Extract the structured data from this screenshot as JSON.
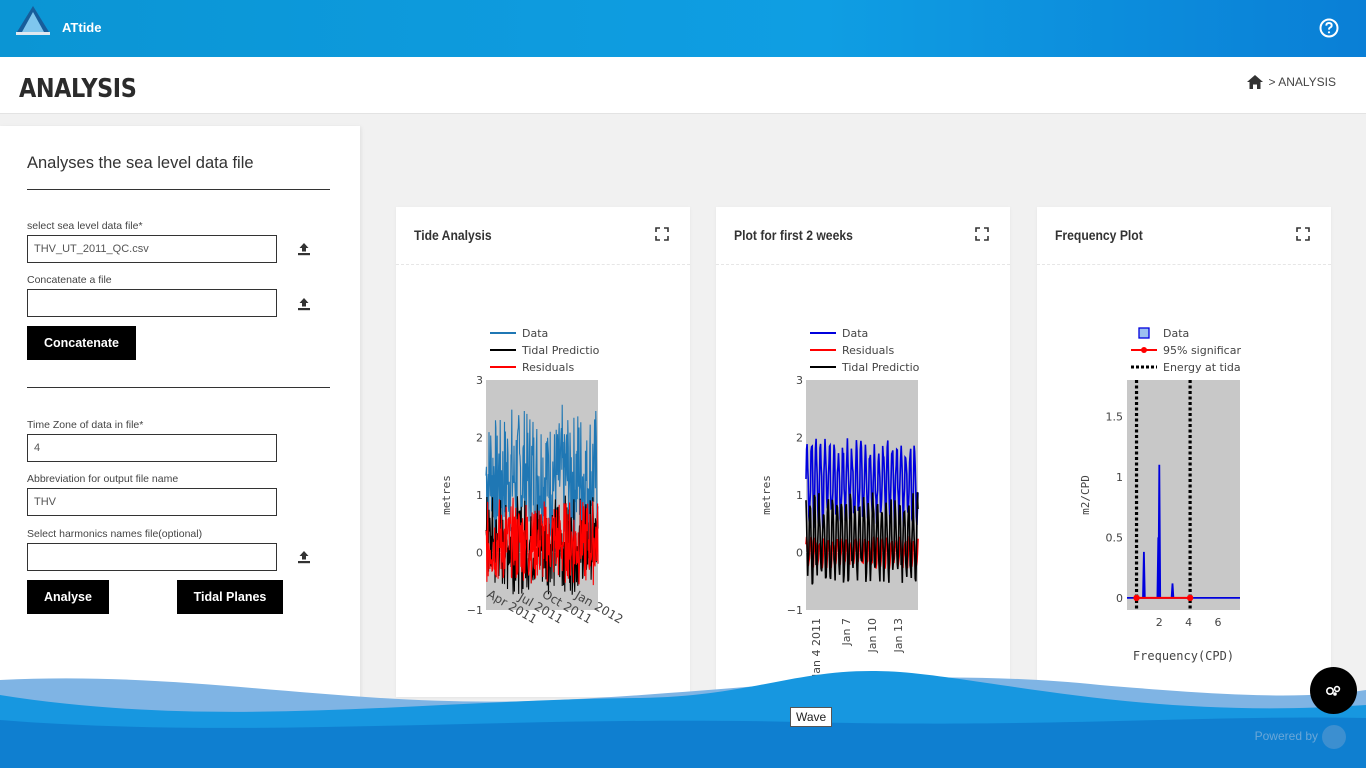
{
  "header": {
    "app_name": "ATtide"
  },
  "page": {
    "title": "ANALYSIS",
    "breadcrumb": "> ANALYSIS"
  },
  "form": {
    "title": "Analyses the sea level data file",
    "sea_level_label": "select sea level data file*",
    "sea_level_value": "THV_UT_2011_QC.csv",
    "concat_label": "Concatenate a file",
    "concat_value": "",
    "concat_button": "Concatenate",
    "timezone_label": "Time Zone of data in file*",
    "timezone_value": "4",
    "abbrev_label": "Abbreviation for output file name",
    "abbrev_value": "THV",
    "harmonics_label": "Select harmonics names file(optional)",
    "harmonics_value": "",
    "analyse_button": "Analyse",
    "tidal_planes_button": "Tidal Planes"
  },
  "cards": [
    {
      "title": "Tide Analysis"
    },
    {
      "title": "Plot for first 2 weeks"
    },
    {
      "title": "Frequency Plot"
    }
  ],
  "footer": {
    "wave_tooltip": "Wave",
    "powered_by": "Powered by"
  },
  "colors": {
    "header": "#0f9ee3",
    "data_series": "#1f77b4",
    "data_blue": "#0000dd",
    "residuals": "#ff0000",
    "prediction": "#000000",
    "plot_bg": "#c8c8c8"
  },
  "chart_data": [
    {
      "type": "line",
      "legend": [
        "Data",
        "Tidal Predictio",
        "Residuals"
      ],
      "legend_colors": [
        "#1f77b4",
        "#000000",
        "#ff0000"
      ],
      "ylabel": "metres",
      "yticks": [
        "3",
        "2",
        "1",
        "0",
        "−1"
      ],
      "ylim": [
        -1,
        3
      ],
      "xticks": [
        "Apr 2011",
        "Jul 2011",
        "Oct 2011",
        "Jan 2012"
      ],
      "series": [
        {
          "name": "Data",
          "range": [
            0.1,
            2.6
          ]
        },
        {
          "name": "Tidal Predictio",
          "range": [
            -0.75,
            1.05
          ]
        },
        {
          "name": "Residuals",
          "range": [
            -0.6,
            1.0
          ]
        }
      ]
    },
    {
      "type": "line",
      "legend": [
        "Data",
        "Residuals",
        "Tidal Predictio"
      ],
      "legend_colors": [
        "#0000dd",
        "#ff0000",
        "#000000"
      ],
      "ylabel": "metres",
      "yticks": [
        "3",
        "2",
        "1",
        "0",
        "−1"
      ],
      "ylim": [
        -1,
        3
      ],
      "xticks": [
        "Jan 4 2011",
        "Jan 7",
        "Jan 10",
        "Jan 13"
      ],
      "series": [
        {
          "name": "Data",
          "range": [
            0.4,
            2.05
          ]
        },
        {
          "name": "Residuals",
          "range": [
            -0.3,
            0.3
          ]
        },
        {
          "name": "Tidal Predictio",
          "range": [
            -0.6,
            1.1
          ]
        }
      ]
    },
    {
      "type": "line",
      "legend": [
        "Data",
        "95% significar",
        "Energy at tida"
      ],
      "legend_colors": [
        "#0000dd",
        "#ff0000",
        "#000000"
      ],
      "ylabel": "m2/CPD",
      "xlabel": "Frequency(CPD)",
      "yticks": [
        "1.5",
        "1",
        "0.5",
        "0"
      ],
      "xticks": [
        "2",
        "4",
        "6"
      ],
      "ylim": [
        -0.1,
        1.8
      ],
      "xlim": [
        -0.2,
        7.5
      ],
      "peaks": [
        {
          "x": 0.95,
          "y": 0.38
        },
        {
          "x": 1.93,
          "y": 0.5
        },
        {
          "x": 2.0,
          "y": 1.1
        },
        {
          "x": 2.9,
          "y": 0.12
        }
      ],
      "energy_lines": [
        0.45,
        4.1
      ]
    }
  ]
}
